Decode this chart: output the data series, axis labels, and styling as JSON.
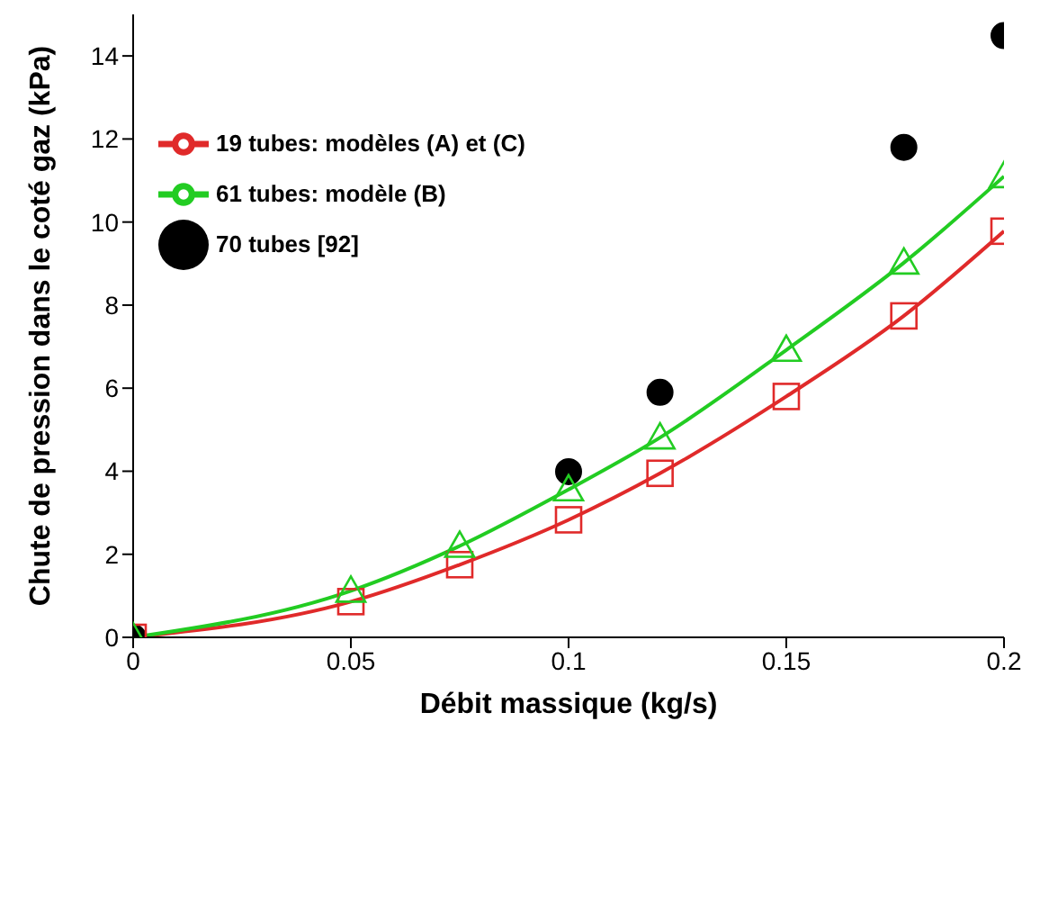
{
  "chart_data": {
    "type": "line",
    "xlabel": "Débit massique (kg/s)",
    "ylabel": "Chute de pression dans le coté gaz (kPa)",
    "xlim": [
      0,
      0.2
    ],
    "xticks": [
      0,
      0.05,
      0.1,
      0.15,
      0.2
    ],
    "ylim": [
      0,
      15
    ],
    "yticks": [
      0,
      2,
      4,
      6,
      8,
      10,
      12,
      14
    ],
    "grid": false,
    "legend": "top left",
    "series": [
      {
        "name": "19 tubes: modèles (A) et (C)",
        "color": "#e02a2a",
        "marker": "square",
        "x": [
          0,
          0.05,
          0.075,
          0.1,
          0.121,
          0.15,
          0.177,
          0.2
        ],
        "values": [
          0,
          0.86,
          1.75,
          2.83,
          3.95,
          5.8,
          7.74,
          9.78
        ]
      },
      {
        "name": "61 tubes: modèle (B)",
        "color": "#22cc22",
        "marker": "triangle",
        "x": [
          0,
          0.05,
          0.075,
          0.1,
          0.121,
          0.15,
          0.177,
          0.2
        ],
        "values": [
          0,
          1.12,
          2.2,
          3.56,
          4.81,
          6.92,
          9.02,
          11.1
        ]
      },
      {
        "name": "70 tubes [92]",
        "type": "scatter",
        "color": "#000000",
        "marker": "circle",
        "x": [
          0,
          0.1,
          0.121,
          0.177,
          0.2
        ],
        "values": [
          0,
          3.99,
          5.9,
          11.8,
          14.49
        ]
      }
    ]
  }
}
